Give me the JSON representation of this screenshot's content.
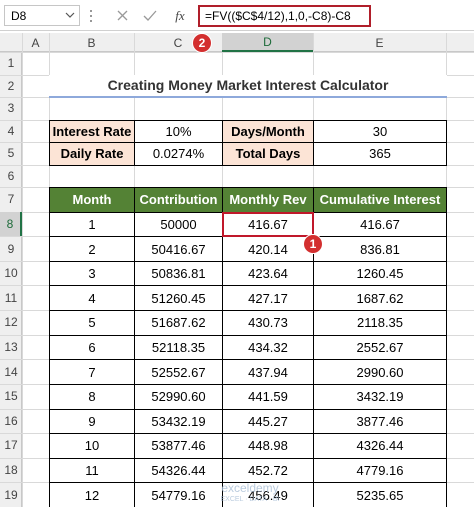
{
  "formula_bar": {
    "name_box": "D8",
    "fx": "fx",
    "formula": "=FV(($C$4/12),1,0,-C8)-C8"
  },
  "callouts": {
    "formula": "2",
    "cell": "1"
  },
  "columns": [
    "A",
    "B",
    "C",
    "D",
    "E"
  ],
  "rows": [
    "1",
    "2",
    "3",
    "4",
    "5",
    "6",
    "7",
    "8",
    "9",
    "10",
    "11",
    "12",
    "13",
    "14",
    "15",
    "16",
    "17",
    "18",
    "19"
  ],
  "title": "Creating Money Market Interest Calculator",
  "inputs": [
    [
      "Interest Rate",
      "10%",
      "Days/Month",
      "30"
    ],
    [
      "Daily Rate",
      "0.0274%",
      "Total Days",
      "365"
    ]
  ],
  "table": {
    "header": [
      "Month",
      "Contribution",
      "Monthly Rev",
      "Cumulative Interest"
    ],
    "rows": [
      [
        "1",
        "50000",
        "416.67",
        "416.67"
      ],
      [
        "2",
        "50416.67",
        "420.14",
        "836.81"
      ],
      [
        "3",
        "50836.81",
        "423.64",
        "1260.45"
      ],
      [
        "4",
        "51260.45",
        "427.17",
        "1687.62"
      ],
      [
        "5",
        "51687.62",
        "430.73",
        "2118.35"
      ],
      [
        "6",
        "52118.35",
        "434.32",
        "2552.67"
      ],
      [
        "7",
        "52552.67",
        "437.94",
        "2990.60"
      ],
      [
        "8",
        "52990.60",
        "441.59",
        "3432.19"
      ],
      [
        "9",
        "53432.19",
        "445.27",
        "3877.46"
      ],
      [
        "10",
        "53877.46",
        "448.98",
        "4326.44"
      ],
      [
        "11",
        "54326.44",
        "452.72",
        "4779.16"
      ],
      [
        "12",
        "54779.16",
        "456.49",
        "5235.65"
      ]
    ]
  },
  "watermark": {
    "name": "exceldemy",
    "tagline": "EXCEL · DATA · BI"
  }
}
